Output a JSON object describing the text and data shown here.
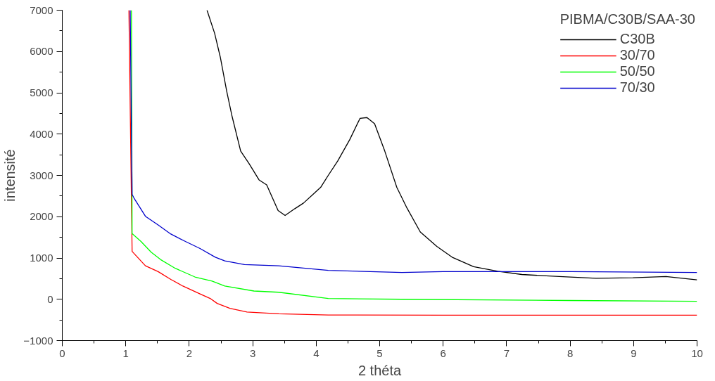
{
  "chart_data": {
    "type": "line",
    "xlabel": "2 théta",
    "ylabel": "intensité",
    "legend_title": "PIBMA/C30B/SAA-30",
    "legend": "top right",
    "grid": false,
    "marker": "none",
    "line_style": "solid",
    "xlim": [
      0,
      10
    ],
    "ylim": [
      -1000,
      7000
    ],
    "xticks": [
      0,
      1,
      2,
      3,
      4,
      5,
      6,
      7,
      8,
      9,
      10
    ],
    "yticks": [
      -1000,
      0,
      1000,
      2000,
      3000,
      4000,
      5000,
      6000,
      7000
    ],
    "series": [
      {
        "name": "C30B",
        "color": "#000000",
        "x": [
          2.28,
          2.4,
          2.49,
          2.59,
          2.67,
          2.81,
          2.94,
          3.1,
          3.22,
          3.4,
          3.51,
          3.66,
          3.8,
          3.95,
          4.07,
          4.19,
          4.34,
          4.53,
          4.69,
          4.8,
          4.92,
          5.08,
          5.27,
          5.43,
          5.64,
          5.9,
          6.14,
          6.48,
          6.86,
          7.24,
          7.83,
          8.41,
          8.99,
          9.51,
          10
        ],
        "values": [
          7000,
          6440,
          5860,
          5040,
          4460,
          3590,
          3290,
          2890,
          2770,
          2150,
          2030,
          2190,
          2330,
          2540,
          2710,
          3000,
          3350,
          3870,
          4380,
          4400,
          4250,
          3590,
          2710,
          2210,
          1630,
          1280,
          1020,
          790,
          680,
          600,
          550,
          510,
          520,
          550,
          470
        ]
      },
      {
        "name": "30/70",
        "color": "#ff0000",
        "x": [
          1.05,
          1.1,
          1.31,
          1.51,
          1.71,
          1.9,
          2.17,
          2.33,
          2.44,
          2.64,
          2.91,
          3.41,
          4.19,
          6,
          8,
          10
        ],
        "values": [
          7000,
          1160,
          810,
          670,
          480,
          320,
          130,
          20,
          -100,
          -220,
          -310,
          -350,
          -380,
          -385,
          -385,
          -385
        ]
      },
      {
        "name": "50/50",
        "color": "#00ff00",
        "x": [
          1.09,
          1.1,
          1.24,
          1.4,
          1.55,
          1.78,
          2.09,
          2.36,
          2.56,
          3.02,
          3.41,
          4.19,
          5.35,
          8,
          10
        ],
        "values": [
          7000,
          1590,
          1400,
          1140,
          960,
          750,
          540,
          440,
          320,
          200,
          170,
          20,
          0,
          -30,
          -50
        ]
      },
      {
        "name": "70/30",
        "color": "#0000cc",
        "x": [
          1.07,
          1.1,
          1.13,
          1.31,
          1.51,
          1.71,
          1.94,
          2.17,
          2.41,
          2.56,
          2.87,
          3.41,
          4.19,
          5.35,
          6,
          8,
          10
        ],
        "values": [
          7000,
          2540,
          2450,
          2010,
          1800,
          1580,
          1400,
          1230,
          1020,
          930,
          840,
          810,
          700,
          650,
          670,
          670,
          650
        ]
      }
    ]
  }
}
